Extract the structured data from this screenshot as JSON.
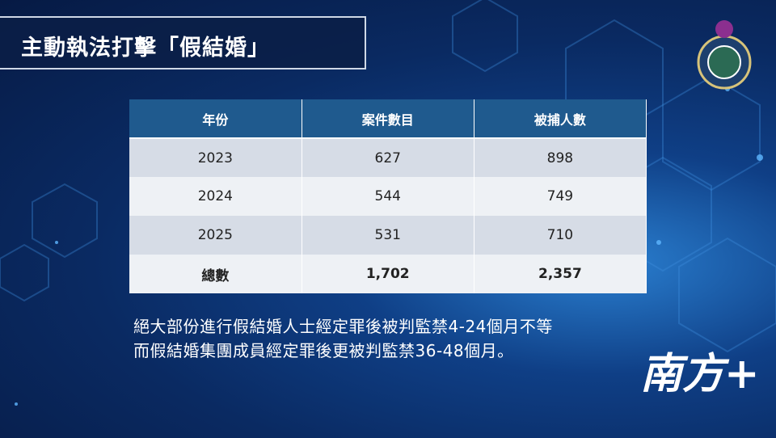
{
  "header": {
    "title": "主動執法打擊「假結婚」"
  },
  "table": {
    "columns": [
      "年份",
      "案件數目",
      "被捕人數"
    ],
    "rows": [
      [
        "2023",
        "627",
        "898"
      ],
      [
        "2024",
        "544",
        "749"
      ],
      [
        "2025",
        "531",
        "710"
      ],
      [
        "總數",
        "1,702",
        "2,357"
      ]
    ]
  },
  "notes": [
    "絕大部份進行假結婚人士經定罪後被判監禁4-24個月不等",
    "而假結婚集團成員經定罪後更被判監禁36-48個月。"
  ],
  "watermark": "南方+"
}
